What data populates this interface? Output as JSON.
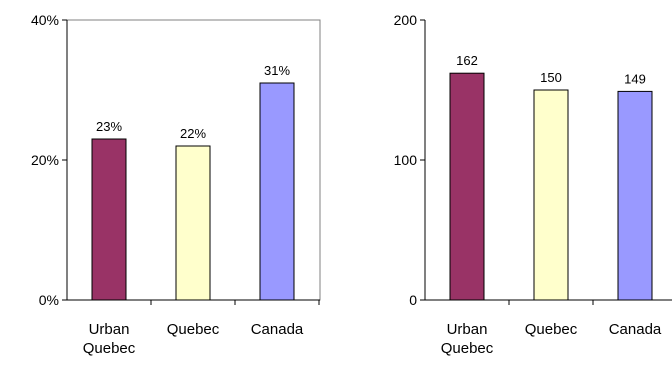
{
  "chart_data": [
    {
      "type": "bar",
      "categories": [
        [
          "Urban",
          "Quebec"
        ],
        [
          "Quebec"
        ],
        [
          "Canada"
        ]
      ],
      "values": [
        23,
        22,
        31
      ],
      "value_labels": [
        "23%",
        "22%",
        "31%"
      ],
      "ylim": [
        0,
        40
      ],
      "yticks": [
        {
          "value": 0,
          "label": "0%"
        },
        {
          "value": 20,
          "label": "20%"
        },
        {
          "value": 40,
          "label": "40%"
        }
      ],
      "colors": [
        "#993366",
        "#FFFFCC",
        "#9999FF"
      ],
      "frame": true,
      "grid": false,
      "title": "",
      "xlabel": "",
      "ylabel": ""
    },
    {
      "type": "bar",
      "categories": [
        [
          "Urban",
          "Quebec"
        ],
        [
          "Quebec"
        ],
        [
          "Canada"
        ]
      ],
      "values": [
        162,
        150,
        149
      ],
      "value_labels": [
        "162",
        "150",
        "149"
      ],
      "ylim": [
        0,
        200
      ],
      "yticks": [
        {
          "value": 0,
          "label": "0"
        },
        {
          "value": 100,
          "label": "100"
        },
        {
          "value": 200,
          "label": "200"
        }
      ],
      "colors": [
        "#993366",
        "#FFFFCC",
        "#9999FF"
      ],
      "frame": false,
      "grid": false,
      "title": "",
      "xlabel": "",
      "ylabel": ""
    }
  ]
}
